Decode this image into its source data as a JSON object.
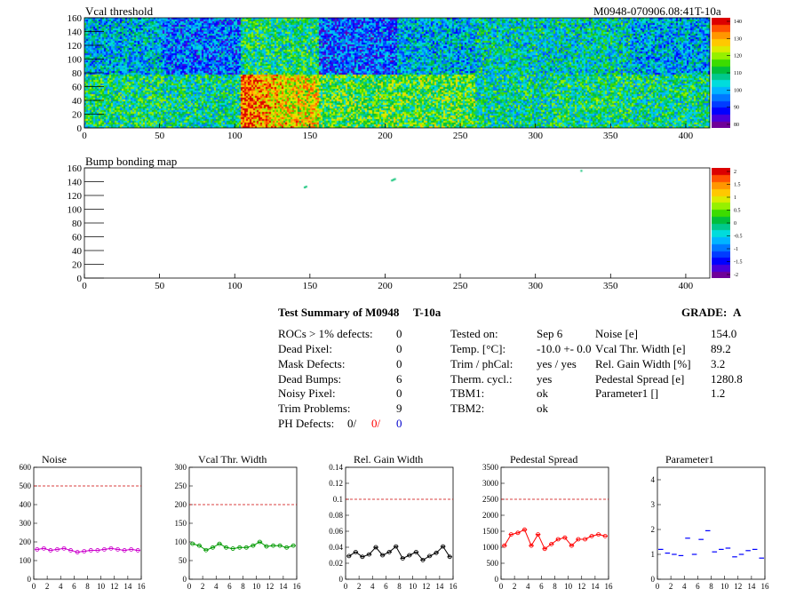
{
  "header": {
    "title": "Vcal threshold",
    "module_id": "M0948-070906.08:41T-10a"
  },
  "map2_title": "Bump bonding map",
  "colorbar1_labels": [
    "140",
    "130",
    "120",
    "110",
    "100",
    "90",
    "80"
  ],
  "colorbar2_labels": [
    "2",
    "1.5",
    "1",
    "0.5",
    "0",
    "-0.5",
    "-1",
    "-1.5",
    "-2"
  ],
  "map_axis": {
    "x_ticks": [
      "0",
      "50",
      "100",
      "150",
      "200",
      "250",
      "300",
      "350",
      "400"
    ],
    "y_ticks": [
      "0",
      "20",
      "40",
      "60",
      "80",
      "100",
      "120",
      "140",
      "160"
    ]
  },
  "summary": {
    "title": "Test Summary of M0948",
    "temp_code": "T-10a",
    "grade_label": "GRADE:",
    "grade": "A",
    "left": [
      {
        "label": "ROCs > 1% defects:",
        "value": "0"
      },
      {
        "label": "Dead Pixel:",
        "value": "0"
      },
      {
        "label": "Mask Defects:",
        "value": "0"
      },
      {
        "label": "Dead Bumps:",
        "value": "6"
      },
      {
        "label": "Noisy Pixel:",
        "value": "0"
      },
      {
        "label": "Trim Problems:",
        "value": "9"
      }
    ],
    "ph_label": "PH Defects:",
    "ph_values": [
      "0/",
      "0/",
      "0"
    ],
    "ph_colors": [
      "#000000",
      "#ff0000",
      "#0000cc"
    ],
    "middle": [
      {
        "label": "Tested on:",
        "value": "Sep 6"
      },
      {
        "label": "Temp. [°C]:",
        "value": "-10.0 +- 0.0"
      },
      {
        "label": "Trim / phCal:",
        "value": "yes / yes"
      },
      {
        "label": "Therm. cycl.:",
        "value": "yes"
      },
      {
        "label": "TBM1:",
        "value": "ok"
      },
      {
        "label": "TBM2:",
        "value": "ok"
      }
    ],
    "right": [
      {
        "label": "Noise [e]",
        "value": "154.0"
      },
      {
        "label": "Vcal Thr. Width [e]",
        "value": "89.2"
      },
      {
        "label": "Rel. Gain Width [%]",
        "value": "3.2"
      },
      {
        "label": "Pedestal Spread [e]",
        "value": "1280.8"
      },
      {
        "label": "Parameter1 []",
        "value": "1.2"
      }
    ]
  },
  "chart_data": [
    {
      "type": "heatmap",
      "title": "Vcal threshold",
      "xlim": [
        0,
        416
      ],
      "ylim": [
        0,
        160
      ],
      "zlim": [
        80,
        145
      ],
      "note_values": "per-ROC mean threshold, ROCs 0-7 in upper half (y 80-160), ROCs 8-15 in lower half (y 0-80)",
      "roc_means": [
        104,
        98,
        112,
        96,
        104,
        108,
        108,
        103,
        112,
        110,
        128,
        117,
        117,
        110,
        112,
        111
      ]
    },
    {
      "type": "heatmap",
      "title": "Bump bonding map",
      "xlim": [
        0,
        416
      ],
      "ylim": [
        0,
        160
      ],
      "zlim": [
        -2,
        2
      ],
      "points": [
        {
          "x": 146,
          "y": 133
        },
        {
          "x": 204,
          "y": 143
        },
        {
          "x": 206,
          "y": 145
        },
        {
          "x": 330,
          "y": 157
        },
        {
          "x": 205,
          "y": 144
        },
        {
          "x": 147,
          "y": 134
        }
      ]
    },
    {
      "type": "line",
      "title": "Noise",
      "color": "#cc00cc",
      "ylim": [
        0,
        600
      ],
      "threshold": 500,
      "y_ticks": [
        "0",
        "100",
        "200",
        "300",
        "400",
        "500",
        "600"
      ],
      "x": [
        0,
        1,
        2,
        3,
        4,
        5,
        6,
        7,
        8,
        9,
        10,
        11,
        12,
        13,
        14,
        15
      ],
      "values": [
        160,
        165,
        155,
        160,
        165,
        155,
        145,
        150,
        155,
        155,
        160,
        165,
        160,
        155,
        160,
        155
      ]
    },
    {
      "type": "line",
      "title": "Vcal Thr. Width",
      "color": "#009900",
      "ylim": [
        0,
        300
      ],
      "threshold": 200,
      "y_ticks": [
        "0",
        "50",
        "100",
        "150",
        "200",
        "250",
        "300"
      ],
      "x": [
        0,
        1,
        2,
        3,
        4,
        5,
        6,
        7,
        8,
        9,
        10,
        11,
        12,
        13,
        14,
        15
      ],
      "values": [
        95,
        90,
        78,
        85,
        95,
        85,
        82,
        85,
        85,
        90,
        100,
        88,
        90,
        90,
        85,
        90
      ]
    },
    {
      "type": "line",
      "title": "Rel. Gain Width",
      "color": "#000000",
      "ylim": [
        0,
        0.14
      ],
      "threshold": 0.1,
      "y_ticks": [
        "0",
        "0.02",
        "0.04",
        "0.06",
        "0.08",
        "0.1",
        "0.12",
        "0.14"
      ],
      "x": [
        0,
        1,
        2,
        3,
        4,
        5,
        6,
        7,
        8,
        9,
        10,
        11,
        12,
        13,
        14,
        15
      ],
      "values": [
        0.029,
        0.034,
        0.028,
        0.031,
        0.04,
        0.03,
        0.034,
        0.041,
        0.026,
        0.03,
        0.034,
        0.024,
        0.029,
        0.033,
        0.041,
        0.028
      ]
    },
    {
      "type": "line",
      "title": "Pedestal Spread",
      "color": "#ff0000",
      "ylim": [
        0,
        3500
      ],
      "threshold": 2500,
      "y_ticks": [
        "0",
        "500",
        "1000",
        "1500",
        "2000",
        "2500",
        "3000",
        "3500"
      ],
      "x": [
        0,
        1,
        2,
        3,
        4,
        5,
        6,
        7,
        8,
        9,
        10,
        11,
        12,
        13,
        14,
        15
      ],
      "values": [
        1050,
        1400,
        1450,
        1550,
        1050,
        1400,
        950,
        1100,
        1250,
        1300,
        1050,
        1250,
        1250,
        1350,
        1400,
        1350
      ]
    },
    {
      "type": "scatter",
      "title": "Parameter1",
      "color": "#0000ff",
      "ylim": [
        0,
        4.5
      ],
      "y_ticks": [
        "0",
        "1",
        "2",
        "3",
        "4"
      ],
      "x": [
        0,
        1,
        2,
        3,
        4,
        5,
        6,
        7,
        8,
        9,
        10,
        11,
        12,
        13,
        14,
        15
      ],
      "values": [
        1.2,
        1.05,
        1.0,
        0.95,
        1.65,
        1.0,
        1.6,
        1.95,
        1.1,
        1.2,
        1.25,
        0.9,
        1.0,
        1.15,
        1.2,
        0.85
      ]
    }
  ],
  "small_x_ticks": [
    "0",
    "2",
    "4",
    "6",
    "8",
    "10",
    "12",
    "14",
    "16"
  ]
}
